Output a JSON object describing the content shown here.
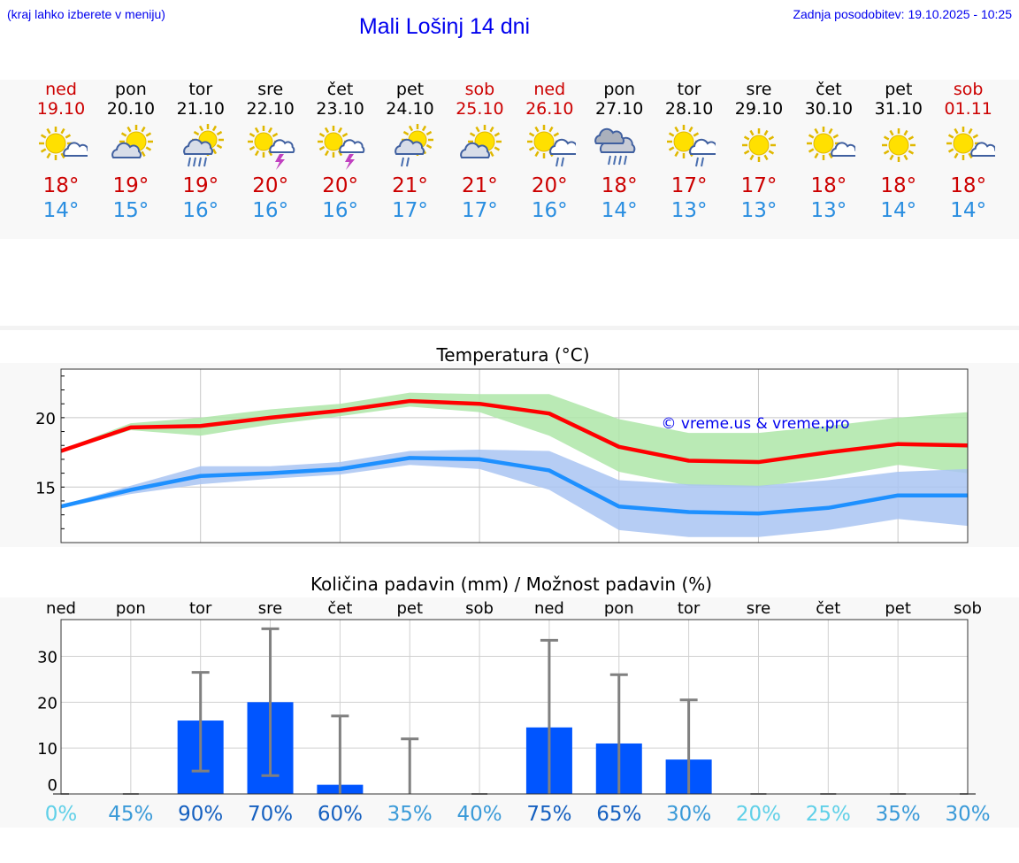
{
  "header": {
    "hint": "(kraj lahko izberete v meniju)",
    "title": "Mali Lošinj 14 dni",
    "updated": "Zadnja posodobitev: 19.10.2025 - 10:25"
  },
  "days": [
    {
      "name": "ned",
      "date": "19.10",
      "weekend": true,
      "icon": "sun-cloud-icon",
      "max": "18°",
      "min": "14°"
    },
    {
      "name": "pon",
      "date": "20.10",
      "weekend": false,
      "icon": "cloud-sun-icon",
      "max": "19°",
      "min": "15°"
    },
    {
      "name": "tor",
      "date": "21.10",
      "weekend": false,
      "icon": "cloud-sun-rain-icon",
      "max": "19°",
      "min": "16°"
    },
    {
      "name": "sre",
      "date": "22.10",
      "weekend": false,
      "icon": "sun-storm-icon",
      "max": "20°",
      "min": "16°"
    },
    {
      "name": "čet",
      "date": "23.10",
      "weekend": false,
      "icon": "sun-storm-icon",
      "max": "20°",
      "min": "16°"
    },
    {
      "name": "pet",
      "date": "24.10",
      "weekend": false,
      "icon": "cloud-sun-light-rain-icon",
      "max": "21°",
      "min": "17°"
    },
    {
      "name": "sob",
      "date": "25.10",
      "weekend": true,
      "icon": "cloud-sun-icon",
      "max": "21°",
      "min": "17°"
    },
    {
      "name": "ned",
      "date": "26.10",
      "weekend": true,
      "icon": "sun-cloud-rain-icon",
      "max": "20°",
      "min": "16°"
    },
    {
      "name": "pon",
      "date": "27.10",
      "weekend": false,
      "icon": "cloud-rain-icon",
      "max": "18°",
      "min": "14°"
    },
    {
      "name": "tor",
      "date": "28.10",
      "weekend": false,
      "icon": "sun-cloud-rain-icon",
      "max": "17°",
      "min": "13°"
    },
    {
      "name": "sre",
      "date": "29.10",
      "weekend": false,
      "icon": "sun-icon",
      "max": "17°",
      "min": "13°"
    },
    {
      "name": "čet",
      "date": "30.10",
      "weekend": false,
      "icon": "sun-cloud-icon",
      "max": "18°",
      "min": "13°"
    },
    {
      "name": "pet",
      "date": "31.10",
      "weekend": false,
      "icon": "sun-icon",
      "max": "18°",
      "min": "14°"
    },
    {
      "name": "sob",
      "date": "01.11",
      "weekend": true,
      "icon": "sun-cloud-icon",
      "max": "18°",
      "min": "14°"
    }
  ],
  "chart_data": [
    {
      "type": "line",
      "title": "Temperatura (°C)",
      "watermark": "© vreme.us & vreme.pro",
      "ylim": [
        11,
        23.5
      ],
      "yticks": [
        15,
        20
      ],
      "grid": true,
      "series": [
        {
          "color": "#ff0000",
          "values": [
            17.6,
            19.3,
            19.4,
            20.0,
            20.5,
            21.2,
            21.0,
            20.3,
            17.9,
            16.9,
            16.8,
            17.5,
            18.1,
            18.0
          ],
          "band_low": [
            17.5,
            19.1,
            18.7,
            19.5,
            20.1,
            20.8,
            20.4,
            18.7,
            16.1,
            15.1,
            15.0,
            15.7,
            16.6,
            16.0
          ],
          "band_high": [
            17.7,
            19.6,
            20.0,
            20.6,
            21.0,
            21.8,
            21.7,
            21.7,
            19.9,
            18.9,
            18.9,
            19.4,
            20.0,
            20.4
          ],
          "band_color": "#aee6a8"
        },
        {
          "color": "#1e90ff",
          "values": [
            13.6,
            14.8,
            15.8,
            16.0,
            16.3,
            17.1,
            17.0,
            16.2,
            13.6,
            13.2,
            13.1,
            13.5,
            14.4,
            14.4
          ],
          "band_low": [
            13.5,
            14.5,
            15.2,
            15.6,
            15.9,
            16.6,
            16.3,
            14.8,
            11.9,
            11.4,
            11.4,
            11.9,
            12.7,
            12.2
          ],
          "band_high": [
            13.7,
            15.1,
            16.5,
            16.5,
            16.8,
            17.6,
            17.7,
            17.6,
            15.5,
            15.2,
            15.1,
            15.5,
            16.1,
            16.3
          ],
          "band_color": "#a9c4f2"
        }
      ]
    },
    {
      "type": "bar",
      "title": "Količina padavin (mm) / Možnost padavin (%)",
      "categories": [
        "ned",
        "pon",
        "tor",
        "sre",
        "čet",
        "pet",
        "sob",
        "ned",
        "pon",
        "tor",
        "sre",
        "čet",
        "pet",
        "sob"
      ],
      "ylim": [
        0,
        38
      ],
      "yticks": [
        0,
        10,
        20,
        30
      ],
      "grid": true,
      "values": [
        0,
        0,
        16,
        20,
        2,
        0,
        0,
        14.5,
        11,
        7.5,
        0,
        0,
        0,
        0
      ],
      "err_low": [
        0,
        0,
        5,
        4,
        0,
        0,
        0,
        0,
        0,
        0,
        0,
        0,
        0,
        0
      ],
      "err_high": [
        0,
        0,
        26.5,
        36,
        17,
        12,
        0,
        33.5,
        26,
        20.5,
        0,
        0,
        0,
        0
      ],
      "probability": [
        "0%",
        "45%",
        "90%",
        "70%",
        "60%",
        "35%",
        "40%",
        "75%",
        "65%",
        "30%",
        "20%",
        "25%",
        "35%",
        "30%"
      ],
      "probability_values": [
        0,
        45,
        90,
        70,
        60,
        35,
        40,
        75,
        65,
        30,
        20,
        25,
        35,
        30
      ],
      "bar_color": "#0055ff",
      "error_color": "#808080"
    }
  ]
}
